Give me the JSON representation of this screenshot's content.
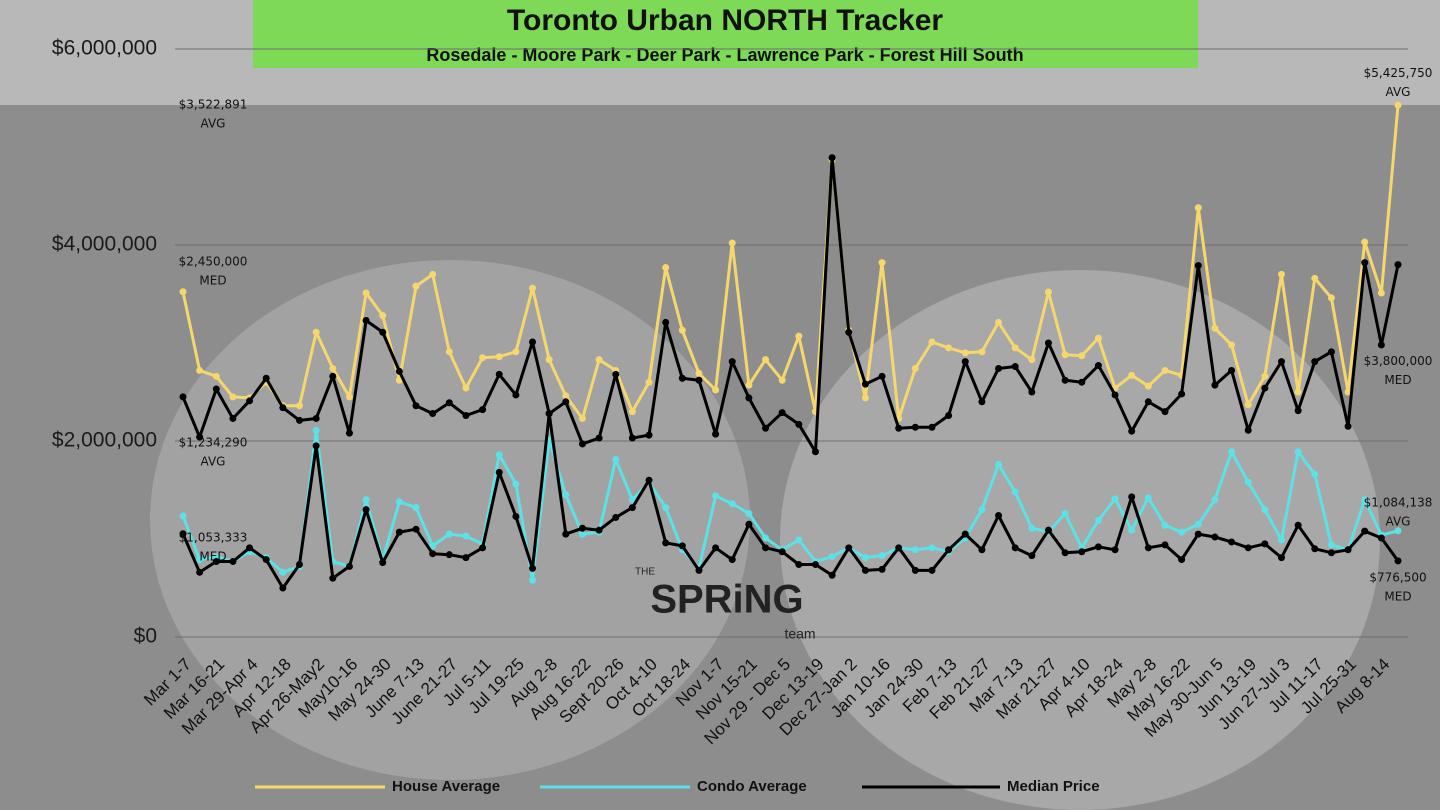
{
  "chart_data": {
    "type": "line",
    "title": "Toronto Urban NORTH Tracker",
    "subtitle": "Rosedale - Moore Park - Deer Park - Lawrence Park - Forest Hill South",
    "logo": {
      "small": "THE",
      "main": "SPRiNG",
      "sub": "team"
    },
    "categories": [
      "Mar 1-7",
      null,
      "Mar 16-21",
      null,
      "Mar 29-Apr 4",
      null,
      "Apr 12-18",
      null,
      "Apr 26-May2",
      null,
      "May10-16",
      null,
      "May 24-30",
      null,
      "June 7-13",
      null,
      "June 21-27",
      null,
      "Jul 5-11",
      null,
      "Jul 19-25",
      null,
      "Aug 2-8",
      null,
      "Aug 16-22",
      null,
      "Sept 20-26",
      null,
      "Oct 4-10",
      null,
      "Oct 18-24",
      null,
      "Nov 1-7",
      null,
      "Nov 15-21",
      null,
      "Nov 29 - Dec 5",
      null,
      "Dec 13-19",
      null,
      "Dec 27-Jan 2",
      null,
      "Jan 10-16",
      null,
      "Jan 24-30",
      null,
      "Feb 7-13",
      null,
      "Feb 21-27",
      null,
      "Mar 7-13",
      null,
      "Mar 21-27",
      null,
      "Apr 4-10",
      null,
      "Apr 18-24",
      null,
      "May 2-8",
      null,
      "May 16-22",
      null,
      "May 30-Jun 5",
      null,
      "Jun 13-19",
      null,
      "Jun 27-Jul 3",
      null,
      "Jul 11-17",
      null,
      "Jul 25-31",
      null,
      "Aug 8-14",
      null
    ],
    "ylim": [
      0,
      6000000
    ],
    "yticks": [
      {
        "value": 0,
        "label": "$0"
      },
      {
        "value": 2000000,
        "label": "$2,000,000"
      },
      {
        "value": 4000000,
        "label": "$4,000,000"
      },
      {
        "value": 6000000,
        "label": "$6,000,000"
      }
    ],
    "grid": true,
    "legend": "bottom",
    "series": [
      {
        "name": "House Average",
        "color": "#f5d76e",
        "tag": "AVG",
        "values": [
          3522891,
          2720000,
          2660000,
          2450000,
          2440000,
          2600000,
          2360000,
          2360000,
          3110000,
          2740000,
          2450000,
          3510000,
          3280000,
          2620000,
          3580000,
          3700000,
          2910000,
          2540000,
          2850000,
          2860000,
          2910000,
          3560000,
          2830000,
          2460000,
          2230000,
          2830000,
          2720000,
          2300000,
          2600000,
          3770000,
          3130000,
          2690000,
          2520000,
          4020000,
          2570000,
          2830000,
          2620000,
          3070000,
          2300000,
          4870000,
          3130000,
          2440000,
          3820000,
          2230000,
          2740000,
          3010000,
          2950000,
          2900000,
          2910000,
          3210000,
          2950000,
          2830000,
          3520000,
          2880000,
          2870000,
          3050000,
          2540000,
          2670000,
          2560000,
          2720000,
          2670000,
          4380000,
          3150000,
          2980000,
          2370000,
          2660000,
          3700000,
          2500000,
          3660000,
          3460000,
          2500000,
          4030000,
          3510000,
          5425750
        ],
        "value_labels": [
          "$3,522,891",
          null,
          null,
          null,
          null,
          null,
          null,
          null,
          null,
          null,
          null,
          null,
          null,
          null,
          null,
          null,
          null,
          null,
          null,
          null,
          null,
          null,
          null,
          null,
          null,
          null,
          null,
          null,
          null,
          null,
          null,
          null,
          null,
          null,
          null,
          null,
          null,
          null,
          null,
          null,
          null,
          null,
          null,
          null,
          null,
          null,
          null,
          null,
          null,
          null,
          null,
          null,
          null,
          null,
          null,
          null,
          null,
          null,
          null,
          null,
          null,
          null,
          null,
          null,
          null,
          null,
          null,
          null,
          null,
          null,
          null,
          null,
          null,
          "$5,425,750"
        ]
      },
      {
        "name": "Condo Average",
        "color": "#5ce1e6",
        "tag": "AVG",
        "values": [
          1234290,
          790000,
          820000,
          770000,
          870000,
          810000,
          660000,
          720000,
          2110000,
          770000,
          720000,
          1400000,
          790000,
          1380000,
          1320000,
          930000,
          1050000,
          1030000,
          950000,
          1860000,
          1560000,
          580000,
          2010000,
          1450000,
          1050000,
          1070000,
          1810000,
          1400000,
          1580000,
          1320000,
          890000,
          700000,
          1440000,
          1360000,
          1260000,
          1010000,
          890000,
          990000,
          770000,
          820000,
          910000,
          810000,
          830000,
          910000,
          890000,
          910000,
          870000,
          1010000,
          1300000,
          1760000,
          1480000,
          1110000,
          1070000,
          1260000,
          910000,
          1190000,
          1410000,
          1090000,
          1420000,
          1140000,
          1070000,
          1150000,
          1400000,
          1890000,
          1580000,
          1300000,
          990000,
          1890000,
          1660000,
          940000,
          890000,
          1400000,
          1040000,
          1084138
        ],
        "value_labels": [
          "$1,234,290",
          null,
          null,
          null,
          null,
          null,
          null,
          null,
          null,
          null,
          null,
          null,
          null,
          null,
          null,
          null,
          null,
          null,
          null,
          null,
          null,
          null,
          null,
          null,
          null,
          null,
          null,
          null,
          null,
          null,
          null,
          null,
          null,
          null,
          null,
          null,
          null,
          null,
          null,
          null,
          null,
          null,
          null,
          null,
          null,
          null,
          null,
          null,
          null,
          null,
          null,
          null,
          null,
          null,
          null,
          null,
          null,
          null,
          null,
          null,
          null,
          null,
          null,
          null,
          null,
          null,
          null,
          null,
          null,
          null,
          null,
          null,
          null,
          "$1,084,138"
        ]
      },
      {
        "name": "Median Price",
        "color": "#000000",
        "tag": "MED",
        "values": [
          2450000,
          2040000,
          2530000,
          2230000,
          2410000,
          2640000,
          2340000,
          2210000,
          2230000,
          2660000,
          2080000,
          3230000,
          3110000,
          2710000,
          2360000,
          2280000,
          2390000,
          2260000,
          2320000,
          2680000,
          2470000,
          3010000,
          2280000,
          2400000,
          1970000,
          2030000,
          2680000,
          2030000,
          2060000,
          3210000,
          2640000,
          2620000,
          2070000,
          2810000,
          2440000,
          2130000,
          2290000,
          2170000,
          1890000,
          4890000,
          3110000,
          2580000,
          2660000,
          2130000,
          2140000,
          2140000,
          2260000,
          2810000,
          2400000,
          2740000,
          2760000,
          2500000,
          3000000,
          2620000,
          2600000,
          2770000,
          2470000,
          2100000,
          2400000,
          2300000,
          2480000,
          3790000,
          2570000,
          2720000,
          2110000,
          2540000,
          2810000,
          2310000,
          2810000,
          2910000,
          2150000,
          3820000,
          2980000,
          3800000
        ],
        "value_labels": [
          "$2,450,000",
          null,
          null,
          null,
          null,
          null,
          null,
          null,
          null,
          null,
          null,
          null,
          null,
          null,
          null,
          null,
          null,
          null,
          null,
          null,
          null,
          null,
          null,
          null,
          null,
          null,
          null,
          null,
          null,
          null,
          null,
          null,
          null,
          null,
          null,
          null,
          null,
          null,
          null,
          null,
          null,
          null,
          null,
          null,
          null,
          null,
          null,
          null,
          null,
          null,
          null,
          null,
          null,
          null,
          null,
          null,
          null,
          null,
          null,
          null,
          null,
          null,
          null,
          null,
          null,
          null,
          null,
          null,
          null,
          null,
          null,
          null,
          null,
          "$3,800,000"
        ]
      },
      {
        "color": "#000000",
        "tag": "MED",
        "values": [
          1053333,
          660000,
          770000,
          770000,
          910000,
          790000,
          500000,
          740000,
          1950000,
          600000,
          720000,
          1300000,
          760000,
          1070000,
          1100000,
          850000,
          840000,
          810000,
          910000,
          1680000,
          1230000,
          700000,
          2280000,
          1050000,
          1110000,
          1090000,
          1220000,
          1320000,
          1600000,
          960000,
          930000,
          680000,
          910000,
          790000,
          1150000,
          910000,
          870000,
          740000,
          740000,
          630000,
          910000,
          680000,
          690000,
          910000,
          680000,
          680000,
          890000,
          1050000,
          890000,
          1240000,
          910000,
          830000,
          1090000,
          860000,
          870000,
          920000,
          890000,
          1430000,
          910000,
          940000,
          790000,
          1050000,
          1020000,
          970000,
          910000,
          950000,
          810000,
          1140000,
          900000,
          860000,
          890000,
          1080000,
          1010000,
          776500
        ],
        "value_labels": [
          "$1,053,333",
          null,
          null,
          null,
          null,
          null,
          null,
          null,
          null,
          null,
          null,
          null,
          null,
          null,
          null,
          null,
          null,
          null,
          null,
          null,
          null,
          null,
          null,
          null,
          null,
          null,
          null,
          null,
          null,
          null,
          null,
          null,
          null,
          null,
          null,
          null,
          null,
          null,
          null,
          null,
          null,
          null,
          null,
          null,
          null,
          null,
          null,
          null,
          null,
          null,
          null,
          null,
          null,
          null,
          null,
          null,
          null,
          null,
          null,
          null,
          null,
          null,
          null,
          null,
          null,
          null,
          null,
          null,
          null,
          null,
          null,
          null,
          null,
          "$776,500"
        ]
      }
    ]
  }
}
